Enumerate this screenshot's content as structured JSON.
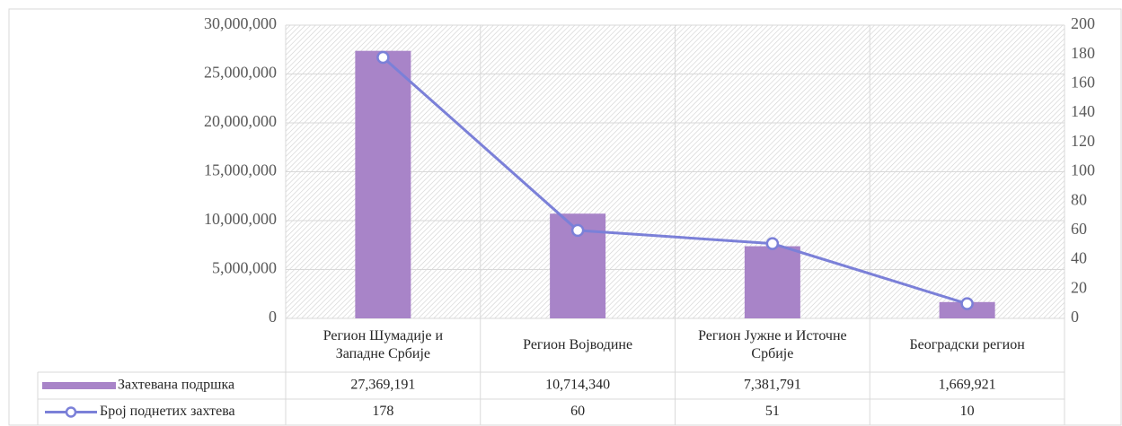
{
  "chart_data": {
    "type": "bar_line",
    "categories": [
      "Регион Шумадије и Западне Србије",
      "Регион Војводине",
      "Регион Јужне и Источне Србије",
      "Београдски регион"
    ],
    "series": [
      {
        "name": "Захтевана подршка",
        "color": "#a884c8",
        "type": "bar",
        "values": [
          27369191,
          10714340,
          7381791,
          1669921
        ],
        "value_labels": [
          "27,369,191",
          "10,714,340",
          "7,381,791",
          "1,669,921"
        ]
      },
      {
        "name": "Број поднетих захтева",
        "color": "#7b80d8",
        "type": "line",
        "axis": "y2",
        "values": [
          178,
          60,
          51,
          10
        ]
      }
    ],
    "ylim": [
      0,
      30000000
    ],
    "yticks": [
      0,
      {
        "value": 5000000,
        "label": "5,000,000"
      },
      {
        "value": 10000000,
        "label": "10,000,000"
      },
      {
        "value": 15000000,
        "label": "15,000,000"
      },
      {
        "value": 20000000,
        "label": "20,000,000"
      },
      {
        "value": 25000000,
        "label": "25,000,000"
      },
      {
        "value": 30000000,
        "label": "30,000,000"
      }
    ],
    "y2lim": [
      0,
      200
    ],
    "y2ticks": [
      0,
      20,
      40,
      60,
      80,
      100,
      120,
      140,
      160,
      180,
      200
    ],
    "grid": true
  }
}
